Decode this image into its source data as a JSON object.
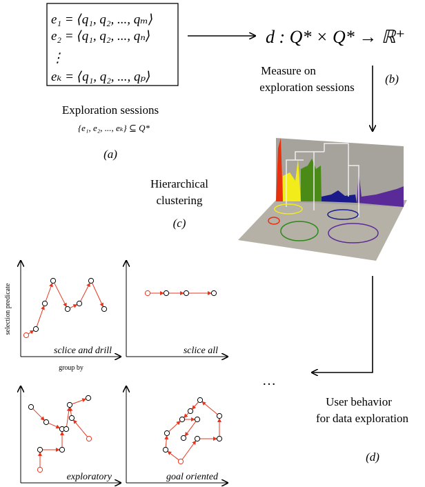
{
  "sessions": {
    "lines": [
      "e₁ = ⟨q₁, q₂, ..., qₘ⟩",
      "e₂ = ⟨q₁, q₂, ..., qₙ⟩",
      "⋮",
      "eₖ = ⟨q₁, q₂, ..., qₚ⟩"
    ],
    "caption": "Exploration sessions",
    "set": "{e₁, e₂, ..., eₖ} ⊆ Q*",
    "label": "(a)"
  },
  "measure": {
    "formula": "d : Q* × Q* → ℝ⁺",
    "caption_line1": "Measure on",
    "caption_line2": "exploration sessions",
    "label": "(b)"
  },
  "clustering": {
    "caption_line1": "Hierarchical",
    "caption_line2": "clustering",
    "label": "(c)"
  },
  "behavior": {
    "caption_line1": "User behavior",
    "caption_line2": "for data exploration",
    "label": "(d)",
    "ellipsis": "…"
  },
  "plots": {
    "y_axis": "selection predicate",
    "x_axis": "group by",
    "titles": [
      "sclice  and drill",
      "sclice  all",
      "exploratory",
      "goal oriented"
    ]
  }
}
